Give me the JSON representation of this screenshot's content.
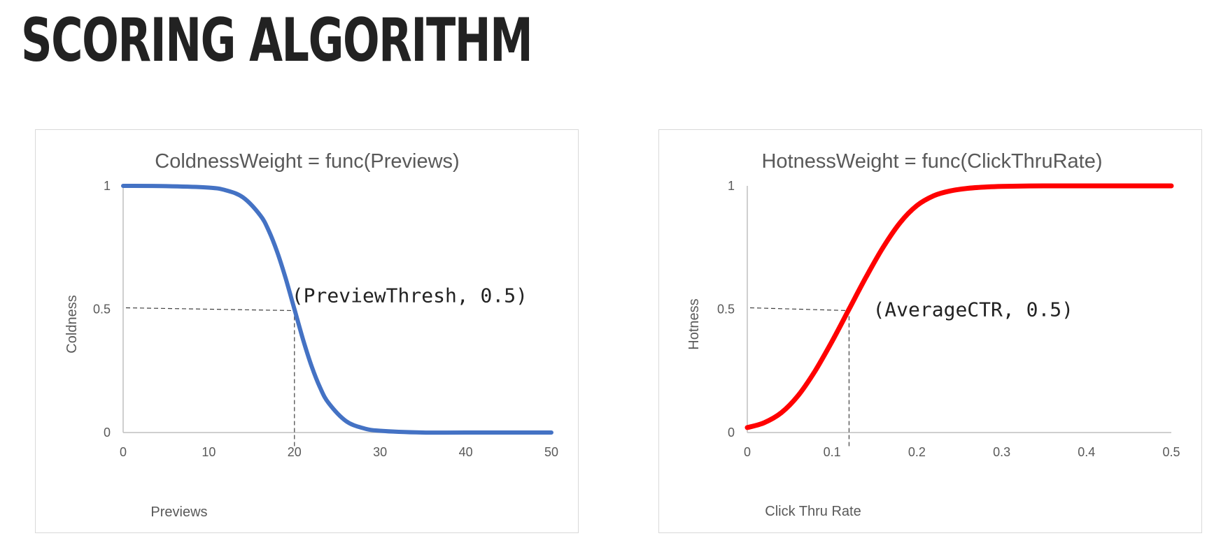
{
  "slide": {
    "title": "Scoring Algorithm"
  },
  "chart_data": [
    {
      "type": "line",
      "title": "ColdnessWeight = func(Previews)",
      "xlabel": "Previews",
      "ylabel": "Coldness",
      "xlim": [
        0,
        50
      ],
      "ylim": [
        0,
        1
      ],
      "x_ticks": [
        "0",
        "10",
        "20",
        "30",
        "40",
        "50"
      ],
      "y_ticks": [
        "0",
        "0.5",
        "1"
      ],
      "series": [
        {
          "color": "#4472c4",
          "x": [
            0,
            5,
            10,
            12,
            14,
            16,
            17,
            18,
            19,
            20,
            21,
            22,
            23,
            24,
            26,
            28,
            30,
            35,
            40,
            50
          ],
          "y": [
            1.0,
            0.999,
            0.993,
            0.982,
            0.953,
            0.881,
            0.818,
            0.731,
            0.622,
            0.5,
            0.378,
            0.269,
            0.182,
            0.119,
            0.047,
            0.018,
            0.007,
            0.0,
            0.0,
            0.0
          ]
        }
      ],
      "annotation": {
        "text": "(PreviewThresh, 0.5)",
        "x": 20,
        "y": 0.5
      }
    },
    {
      "type": "line",
      "title": "HotnessWeight = func(ClickThruRate)",
      "xlabel": "Click Thru Rate",
      "ylabel": "Hotness",
      "xlim": [
        0,
        0.5
      ],
      "ylim": [
        0,
        1
      ],
      "x_ticks": [
        "0",
        "0.1",
        "0.2",
        "0.3",
        "0.4",
        "0.5"
      ],
      "y_ticks": [
        "0",
        "0.5",
        "1"
      ],
      "series": [
        {
          "color": "#ff0000",
          "x": [
            0,
            0.02,
            0.04,
            0.06,
            0.08,
            0.1,
            0.12,
            0.14,
            0.16,
            0.18,
            0.2,
            0.22,
            0.24,
            0.26,
            0.28,
            0.3,
            0.35,
            0.4,
            0.5
          ],
          "y": [
            0.02,
            0.04,
            0.08,
            0.15,
            0.25,
            0.37,
            0.5,
            0.63,
            0.75,
            0.85,
            0.92,
            0.96,
            0.98,
            0.99,
            0.995,
            0.998,
            1.0,
            1.0,
            1.0
          ]
        }
      ],
      "annotation": {
        "text": "(AverageCTR, 0.5)",
        "x": 0.12,
        "y": 0.5
      }
    }
  ]
}
